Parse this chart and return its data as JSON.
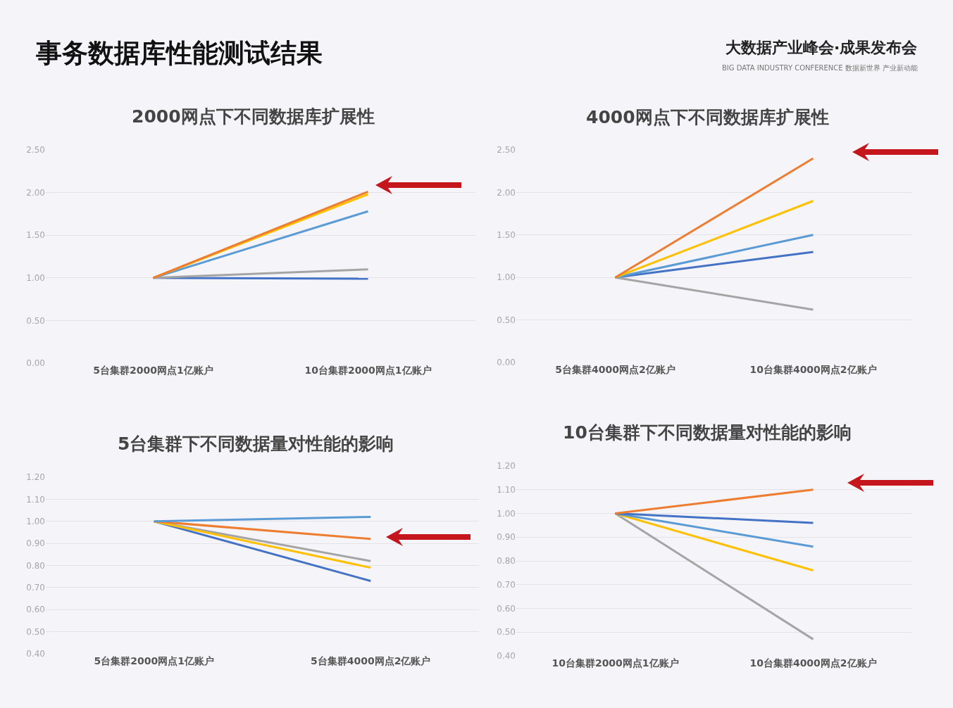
{
  "chart_data": [
    {
      "type": "other",
      "title": "事务数据库性能测试结果",
      "annotations": [
        "大数据产业峰会·成果发布会",
        "BIG DATA INDUSTRY CONFERENCE 数据新世界 产业新动能"
      ]
    },
    {
      "type": "line",
      "title": "2000网点下不同数据库扩展性",
      "categories": [
        "5台集群2000网点1亿账户",
        "10台集群2000网点1亿账户"
      ],
      "series": [
        {
          "color": "#4472c4",
          "values": [
            1.0,
            0.99
          ]
        },
        {
          "color": "#a5a5a5",
          "values": [
            1.0,
            1.1
          ]
        },
        {
          "color": "#5b9bd5",
          "values": [
            1.0,
            1.78
          ]
        },
        {
          "color": "#ffc000",
          "values": [
            1.0,
            1.98
          ]
        },
        {
          "color": "#ed7d31",
          "values": [
            1.0,
            2.01
          ]
        }
      ],
      "ylim": [
        0,
        2.5
      ],
      "yticks": [
        {
          "value": 0,
          "label": "0.00"
        },
        {
          "value": 0.5,
          "label": "0.50"
        },
        {
          "value": 1.0,
          "label": "1.00"
        },
        {
          "value": 1.5,
          "label": "1.50"
        },
        {
          "value": 2.0,
          "label": "2.00"
        },
        {
          "value": 2.5,
          "label": "2.50"
        }
      ],
      "grid": "y"
    },
    {
      "type": "line",
      "title": "4000网点下不同数据库扩展性",
      "categories": [
        "5台集群4000网点2亿账户",
        "10台集群4000网点2亿账户"
      ],
      "series": [
        {
          "color": "#4472c4",
          "values": [
            1.0,
            1.3
          ]
        },
        {
          "color": "#a5a5a5",
          "values": [
            1.0,
            0.62
          ]
        },
        {
          "color": "#5b9bd5",
          "values": [
            1.0,
            1.5
          ]
        },
        {
          "color": "#ffc000",
          "values": [
            1.0,
            1.9
          ]
        },
        {
          "color": "#ed7d31",
          "values": [
            1.0,
            2.4
          ]
        }
      ],
      "ylim": [
        0,
        2.5
      ],
      "yticks": [
        {
          "value": 0,
          "label": "0.00"
        },
        {
          "value": 0.5,
          "label": "0.50"
        },
        {
          "value": 1.0,
          "label": "1.00"
        },
        {
          "value": 1.5,
          "label": "1.50"
        },
        {
          "value": 2.0,
          "label": "2.00"
        },
        {
          "value": 2.5,
          "label": "2.50"
        }
      ],
      "grid": "y"
    },
    {
      "type": "line",
      "title": "5台集群下不同数据量对性能的影响",
      "categories": [
        "5台集群2000网点1亿账户",
        "5台集群4000网点2亿账户"
      ],
      "series": [
        {
          "color": "#4472c4",
          "values": [
            1.0,
            0.73
          ]
        },
        {
          "color": "#a5a5a5",
          "values": [
            1.0,
            0.82
          ]
        },
        {
          "color": "#ffc000",
          "values": [
            1.0,
            0.79
          ]
        },
        {
          "color": "#ed7d31",
          "values": [
            1.0,
            0.92
          ]
        },
        {
          "color": "#5b9bd5",
          "values": [
            1.0,
            1.02
          ]
        }
      ],
      "ylim": [
        0.4,
        1.2
      ],
      "yticks": [
        {
          "value": 0.4,
          "label": "0.40"
        },
        {
          "value": 0.5,
          "label": "0.50"
        },
        {
          "value": 0.6,
          "label": "0.60"
        },
        {
          "value": 0.7,
          "label": "0.70"
        },
        {
          "value": 0.8,
          "label": "0.80"
        },
        {
          "value": 0.9,
          "label": "0.90"
        },
        {
          "value": 1.0,
          "label": "1.00"
        },
        {
          "value": 1.1,
          "label": "1.10"
        },
        {
          "value": 1.2,
          "label": "1.20"
        }
      ],
      "grid": "y"
    },
    {
      "type": "line",
      "title": "10台集群下不同数据量对性能的影响",
      "categories": [
        "10台集群2000网点1亿账户",
        "10台集群4000网点2亿账户"
      ],
      "series": [
        {
          "color": "#a5a5a5",
          "values": [
            1.0,
            0.47
          ]
        },
        {
          "color": "#ffc000",
          "values": [
            1.0,
            0.76
          ]
        },
        {
          "color": "#5b9bd5",
          "values": [
            1.0,
            0.86
          ]
        },
        {
          "color": "#4472c4",
          "values": [
            1.0,
            0.96
          ]
        },
        {
          "color": "#ed7d31",
          "values": [
            1.0,
            1.1
          ]
        }
      ],
      "ylim": [
        0.4,
        1.2
      ],
      "yticks": [
        {
          "value": 0.4,
          "label": "0.40"
        },
        {
          "value": 0.5,
          "label": "0.50"
        },
        {
          "value": 0.6,
          "label": "0.60"
        },
        {
          "value": 0.7,
          "label": "0.70"
        },
        {
          "value": 0.8,
          "label": "0.80"
        },
        {
          "value": 0.9,
          "label": "0.90"
        },
        {
          "value": 1.0,
          "label": "1.00"
        },
        {
          "value": 1.1,
          "label": "1.10"
        },
        {
          "value": 1.2,
          "label": "1.20"
        }
      ],
      "grid": "y"
    }
  ]
}
